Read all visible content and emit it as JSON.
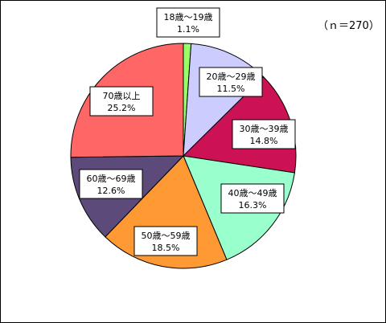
{
  "chart_data": {
    "type": "pie",
    "sample_size_label": "（ｎ＝270）",
    "start_angle": "12 o'clock, clockwise",
    "slices": [
      {
        "label": "18歳～19歳",
        "value": 1.1,
        "value_label": "1.1%",
        "color": "#99ff66"
      },
      {
        "label": "20歳～29歳",
        "value": 11.5,
        "value_label": "11.5%",
        "color": "#ccccff"
      },
      {
        "label": "30歳～39歳",
        "value": 14.8,
        "value_label": "14.8%",
        "color": "#cc1155"
      },
      {
        "label": "40歳～49歳",
        "value": 16.3,
        "value_label": "16.3%",
        "color": "#99ffcc"
      },
      {
        "label": "50歳～59歳",
        "value": 18.5,
        "value_label": "18.5%",
        "color": "#ff9933"
      },
      {
        "label": "60歳～69歳",
        "value": 12.6,
        "value_label": "12.6%",
        "color": "#5c4a7a"
      },
      {
        "label": "70歳以上",
        "value": 25.2,
        "value_label": "25.2%",
        "color": "#ff6666"
      }
    ]
  }
}
